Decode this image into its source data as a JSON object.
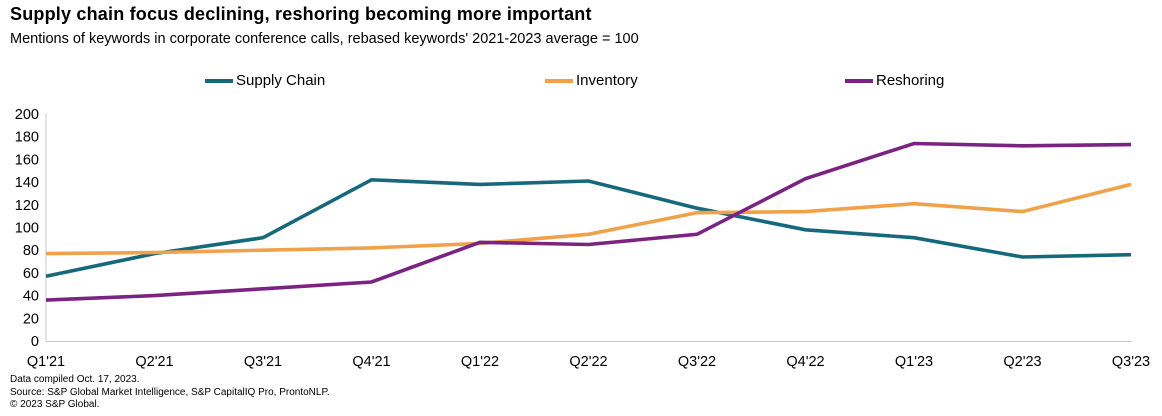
{
  "header": {
    "title": "Supply chain focus declining, reshoring becoming more important",
    "subtitle": "Mentions of keywords in corporate conference calls, rebased keywords' 2021-2023 average = 100"
  },
  "chart_data": {
    "type": "line",
    "categories": [
      "Q1'21",
      "Q2'21",
      "Q3'21",
      "Q4'21",
      "Q1'22",
      "Q2'22",
      "Q3'22",
      "Q4'22",
      "Q1'23",
      "Q2'23",
      "Q3'23"
    ],
    "series": [
      {
        "name": "Supply Chain",
        "color": "#16697d",
        "values": [
          57,
          77,
          91,
          142,
          138,
          141,
          117,
          98,
          91,
          74,
          76
        ]
      },
      {
        "name": "Inventory",
        "color": "#efa24a",
        "values": [
          77,
          78,
          80,
          82,
          86,
          94,
          113,
          114,
          121,
          114,
          138
        ]
      },
      {
        "name": "Reshoring",
        "color": "#7b2382",
        "values": [
          36,
          40,
          46,
          52,
          87,
          85,
          94,
          143,
          174,
          172,
          173
        ]
      }
    ],
    "title": "Supply chain focus declining, reshoring becoming more important",
    "xlabel": "",
    "ylabel": "",
    "ylim": [
      0,
      200
    ],
    "ytick_step": 20,
    "grid": false,
    "legend_position": "top",
    "axis_color": "#c8c8c8",
    "tick_label_color": "#000000"
  },
  "footer": {
    "lines": [
      "Data compiled Oct. 17, 2023.",
      "Source: S&P Global Market Intelligence, S&P CapitalIQ Pro, ProntoNLP.",
      "© 2023 S&P Global."
    ]
  }
}
